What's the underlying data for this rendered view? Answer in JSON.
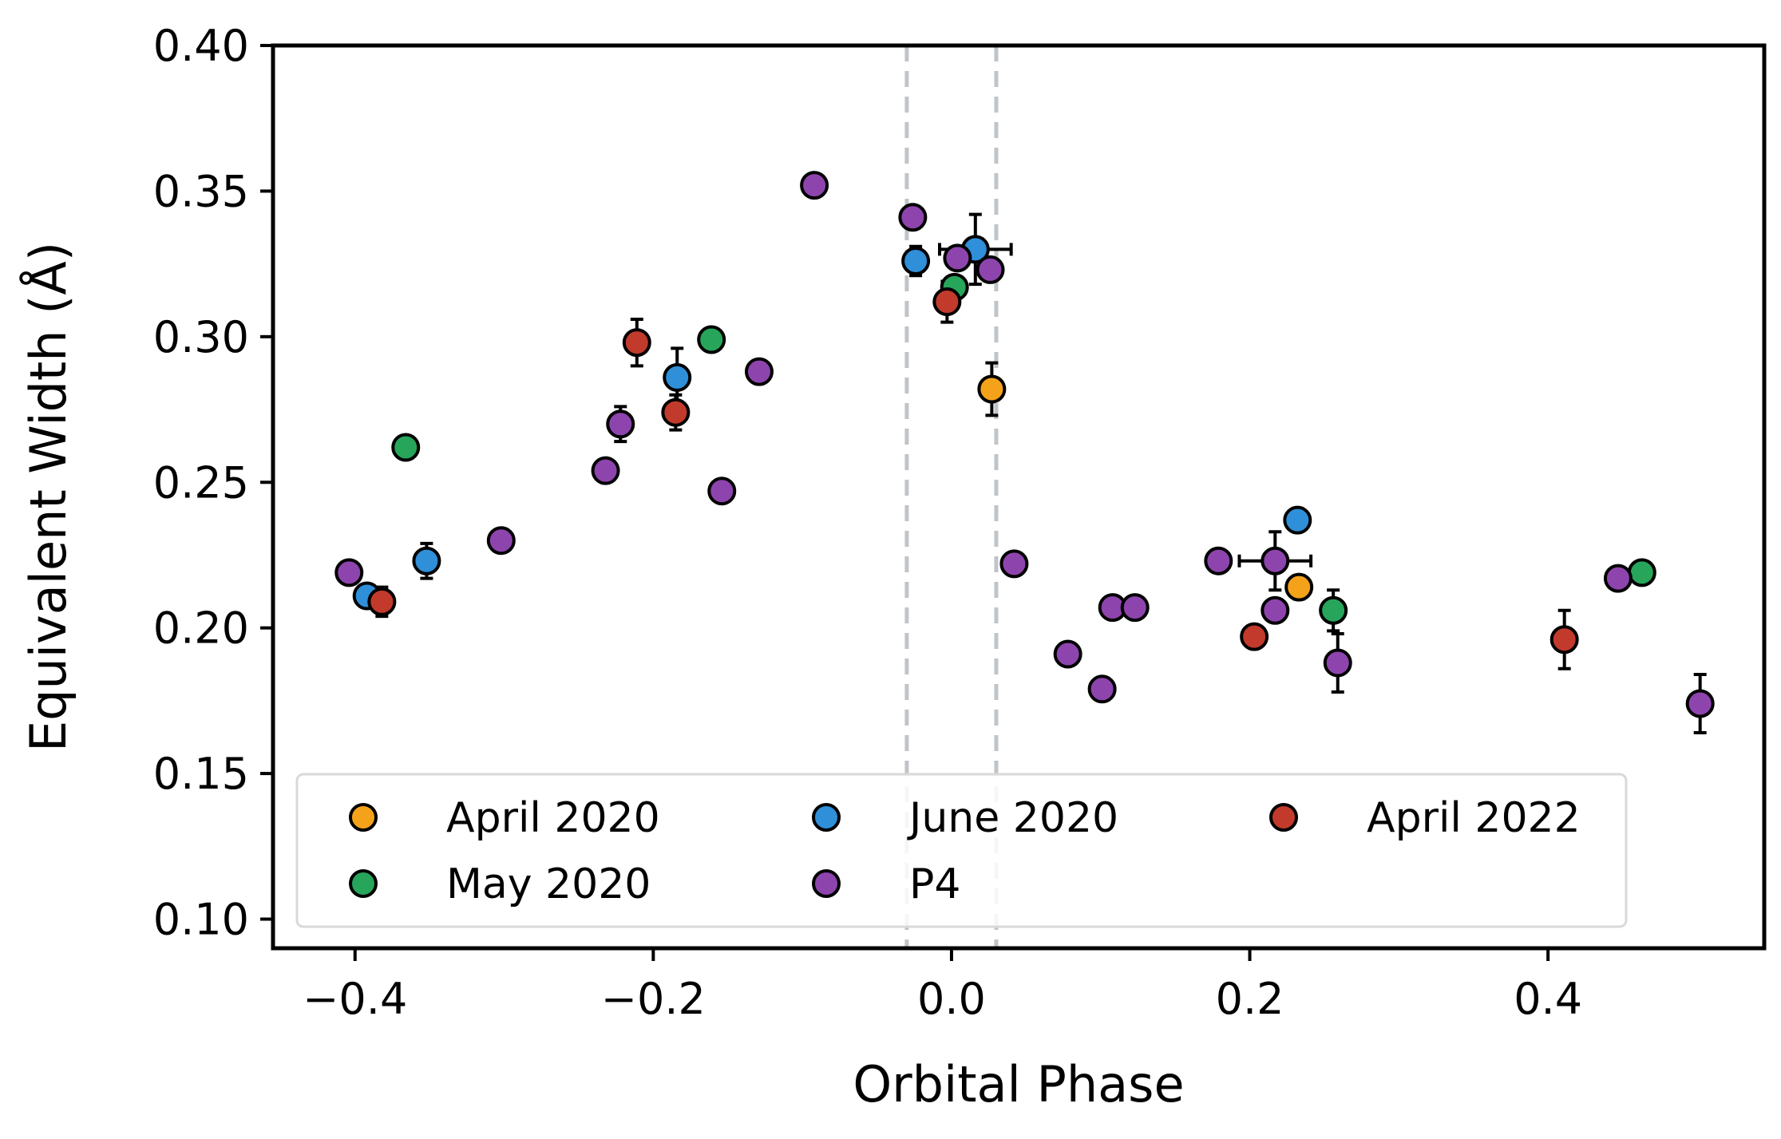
{
  "chart_data": {
    "type": "scatter",
    "xlabel": "Orbital Phase",
    "ylabel": "Equivalent Width (Å)",
    "xlim": [
      -0.455,
      0.545
    ],
    "ylim": [
      0.09,
      0.4
    ],
    "xticks": [
      -0.4,
      -0.2,
      0.0,
      0.2,
      0.4
    ],
    "xtick_labels": [
      "−0.4",
      "−0.2",
      "0.0",
      "0.2",
      "0.4"
    ],
    "yticks": [
      0.1,
      0.15,
      0.2,
      0.25,
      0.3,
      0.35,
      0.4
    ],
    "ytick_labels": [
      "0.10",
      "0.15",
      "0.20",
      "0.25",
      "0.30",
      "0.35",
      "0.40"
    ],
    "vlines": [
      -0.03,
      0.03
    ],
    "vline_color": "#c0c4c8",
    "grid": false,
    "legend_position": "lower center",
    "series": [
      {
        "name": "April 2020",
        "color": "#f5a21b",
        "points": [
          {
            "x": 0.027,
            "y": 0.282,
            "yerr": 0.009
          },
          {
            "x": 0.233,
            "y": 0.214,
            "yerr": 0.004
          }
        ]
      },
      {
        "name": "May 2020",
        "color": "#27a55a",
        "points": [
          {
            "x": -0.366,
            "y": 0.262,
            "yerr": 0.002
          },
          {
            "x": -0.161,
            "y": 0.299,
            "yerr": 0.002
          },
          {
            "x": 0.002,
            "y": 0.317,
            "yerr": 0.003
          },
          {
            "x": 0.256,
            "y": 0.206,
            "yerr": 0.007
          },
          {
            "x": 0.463,
            "y": 0.219,
            "yerr": 0.002
          }
        ]
      },
      {
        "name": "June 2020",
        "color": "#2f8fd8",
        "points": [
          {
            "x": -0.392,
            "y": 0.211,
            "yerr": 0.003
          },
          {
            "x": -0.352,
            "y": 0.223,
            "yerr": 0.006
          },
          {
            "x": -0.184,
            "y": 0.286,
            "yerr": 0.01
          },
          {
            "x": -0.024,
            "y": 0.326,
            "yerr": 0.005
          },
          {
            "x": 0.016,
            "y": 0.33,
            "yerr": 0.012,
            "xerr": 0.024
          },
          {
            "x": 0.232,
            "y": 0.237,
            "yerr": 0.003
          }
        ]
      },
      {
        "name": "P4",
        "color": "#8e44ad",
        "points": [
          {
            "x": -0.404,
            "y": 0.219,
            "yerr": 0.002
          },
          {
            "x": -0.302,
            "y": 0.23,
            "yerr": 0.002
          },
          {
            "x": -0.232,
            "y": 0.254,
            "yerr": 0.002
          },
          {
            "x": -0.222,
            "y": 0.27,
            "yerr": 0.006
          },
          {
            "x": -0.154,
            "y": 0.247,
            "yerr": 0.002
          },
          {
            "x": -0.129,
            "y": 0.288,
            "yerr": 0.002
          },
          {
            "x": -0.092,
            "y": 0.352,
            "yerr": 0.002
          },
          {
            "x": -0.026,
            "y": 0.341,
            "yerr": 0.002
          },
          {
            "x": 0.004,
            "y": 0.327,
            "yerr": 0.002
          },
          {
            "x": 0.026,
            "y": 0.323,
            "yerr": 0.002
          },
          {
            "x": 0.042,
            "y": 0.222,
            "yerr": 0.002
          },
          {
            "x": 0.078,
            "y": 0.191,
            "yerr": 0.002
          },
          {
            "x": 0.101,
            "y": 0.179,
            "yerr": 0.002
          },
          {
            "x": 0.108,
            "y": 0.207,
            "yerr": 0.002
          },
          {
            "x": 0.123,
            "y": 0.207,
            "yerr": 0.002
          },
          {
            "x": 0.179,
            "y": 0.223,
            "yerr": 0.002
          },
          {
            "x": 0.217,
            "y": 0.223,
            "yerr": 0.01,
            "xerr": 0.024
          },
          {
            "x": 0.217,
            "y": 0.206,
            "yerr": 0.002
          },
          {
            "x": 0.259,
            "y": 0.188,
            "yerr": 0.01
          },
          {
            "x": 0.447,
            "y": 0.217,
            "yerr": 0.002
          },
          {
            "x": 0.502,
            "y": 0.174,
            "yerr": 0.01
          }
        ]
      },
      {
        "name": "April 2022",
        "color": "#c23a2b",
        "points": [
          {
            "x": -0.382,
            "y": 0.209,
            "yerr": 0.005
          },
          {
            "x": -0.211,
            "y": 0.298,
            "yerr": 0.008
          },
          {
            "x": -0.185,
            "y": 0.274,
            "yerr": 0.006
          },
          {
            "x": -0.003,
            "y": 0.312,
            "yerr": 0.007
          },
          {
            "x": 0.203,
            "y": 0.197,
            "yerr": 0.002
          },
          {
            "x": 0.411,
            "y": 0.196,
            "yerr": 0.01
          }
        ]
      }
    ],
    "legend": [
      {
        "name": "April 2020",
        "color": "#f5a21b"
      },
      {
        "name": "June 2020",
        "color": "#2f8fd8"
      },
      {
        "name": "April 2022",
        "color": "#c23a2b"
      },
      {
        "name": "May 2020",
        "color": "#27a55a"
      },
      {
        "name": "P4",
        "color": "#8e44ad"
      }
    ]
  }
}
